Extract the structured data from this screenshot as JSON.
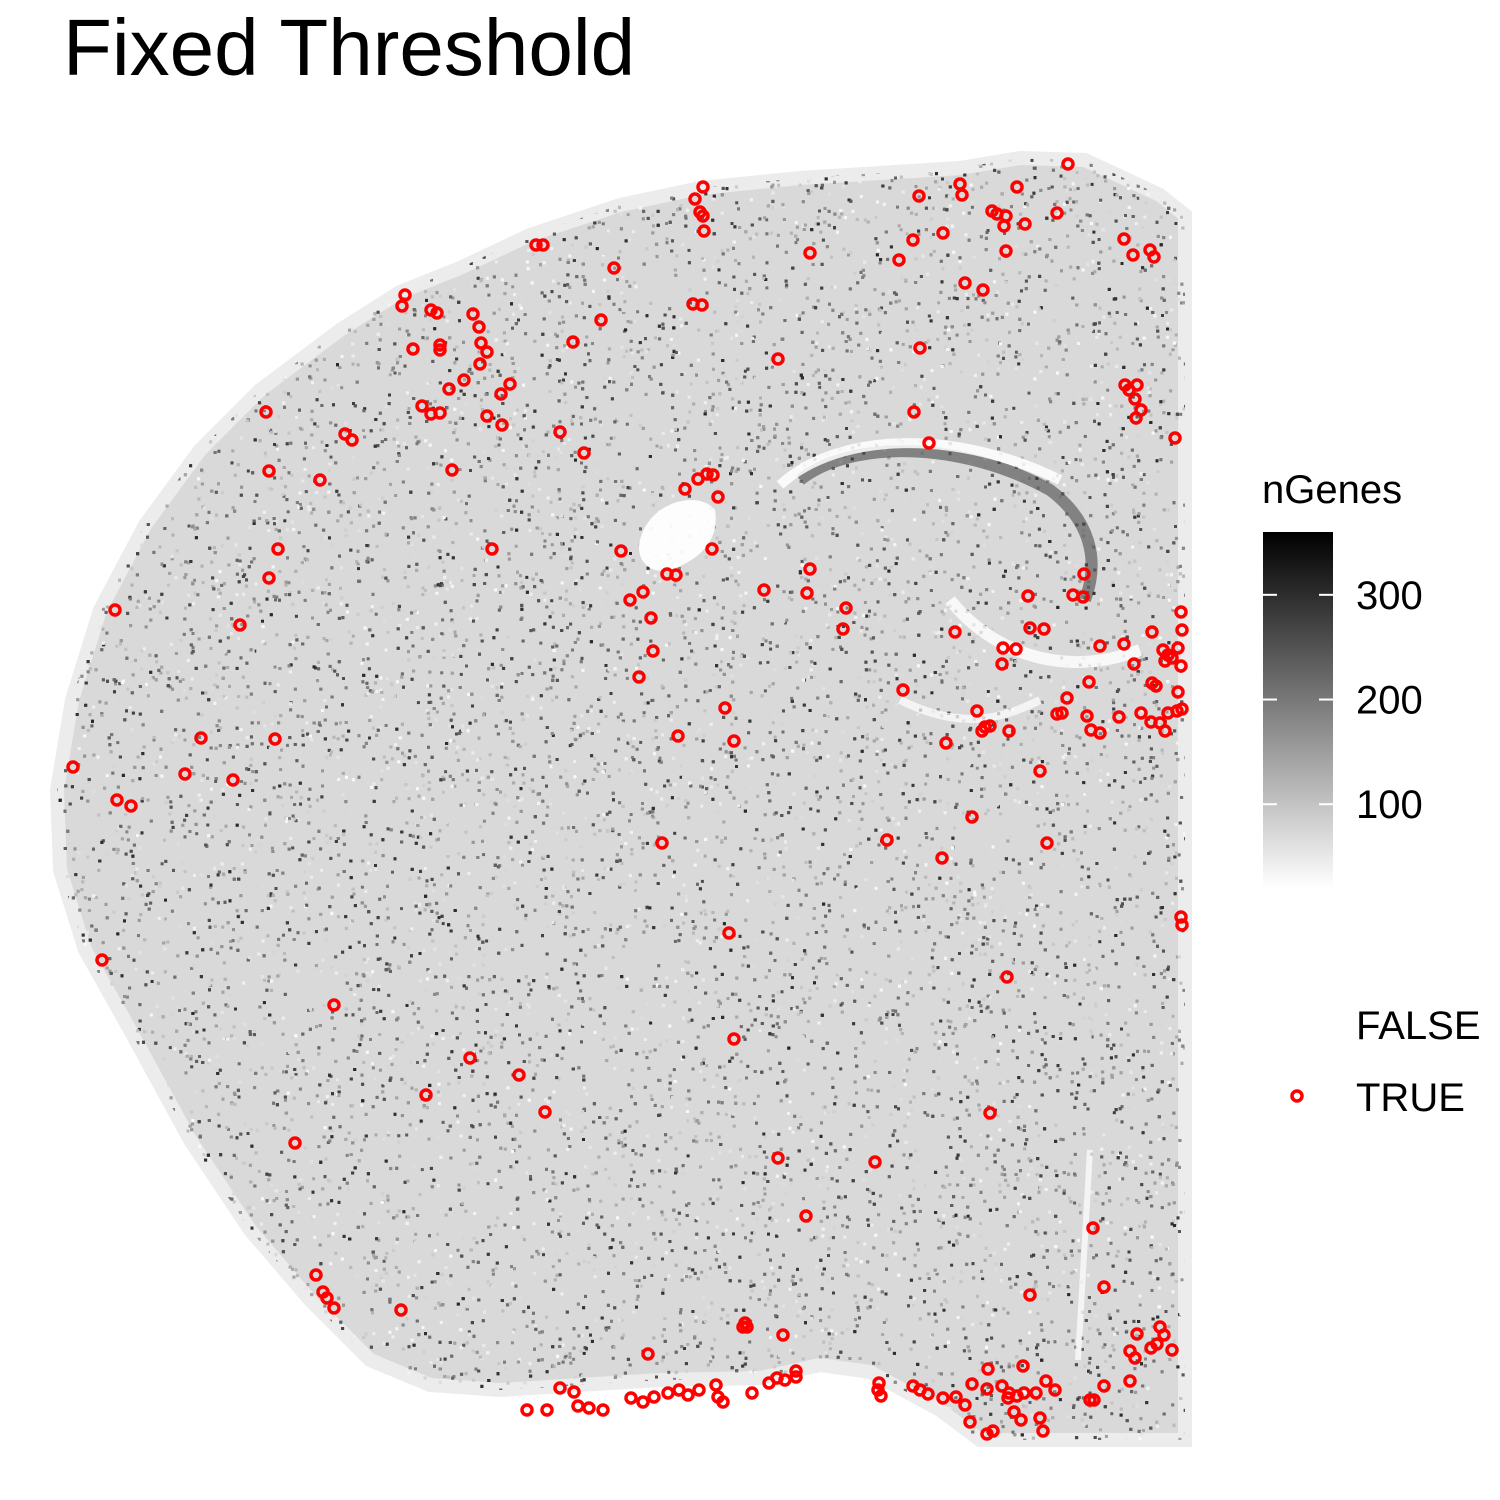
{
  "chart_data": {
    "type": "scatter",
    "title": "Fixed Threshold",
    "xlabel": "",
    "ylabel": "",
    "axes_visible": false,
    "grid": false,
    "background_points": {
      "description": "spatial tissue section, every cell drawn as a small grey dot shaded by gene count",
      "color_variable": "nGenes",
      "color_range": [
        20,
        360
      ],
      "gradient": [
        "#ffffff",
        "#000000"
      ]
    },
    "legend": {
      "placement": "right",
      "colorbar": {
        "title": "nGenes",
        "ticks": [
          100,
          200,
          300
        ],
        "tick_labels": [
          "100",
          "200",
          "300"
        ],
        "range": [
          20,
          360
        ]
      },
      "categories": [
        {
          "label": "FALSE",
          "color": "",
          "shape": "none"
        },
        {
          "label": "TRUE",
          "color": "#ff0000",
          "shape": "open-circle"
        }
      ]
    },
    "flagged_color": "#ff0000",
    "flagged_points": [
      [
        1068,
        164
      ],
      [
        703,
        187
      ],
      [
        695,
        199
      ],
      [
        700,
        212
      ],
      [
        703,
        216
      ],
      [
        704,
        231
      ],
      [
        919,
        196
      ],
      [
        960,
        184
      ],
      [
        962,
        195
      ],
      [
        1017,
        187
      ],
      [
        992,
        211
      ],
      [
        997,
        214
      ],
      [
        1006,
        216
      ],
      [
        1004,
        226
      ],
      [
        1025,
        224
      ],
      [
        1057,
        213
      ],
      [
        1006,
        251
      ],
      [
        943,
        233
      ],
      [
        913,
        240
      ],
      [
        899,
        260
      ],
      [
        1124,
        239
      ],
      [
        1133,
        255
      ],
      [
        1150,
        250
      ],
      [
        1154,
        257
      ],
      [
        536,
        245
      ],
      [
        543,
        245
      ],
      [
        810,
        253
      ],
      [
        614,
        268
      ],
      [
        965,
        283
      ],
      [
        983,
        290
      ],
      [
        405,
        295
      ],
      [
        402,
        306
      ],
      [
        431,
        310
      ],
      [
        437,
        313
      ],
      [
        693,
        304
      ],
      [
        702,
        305
      ],
      [
        601,
        320
      ],
      [
        473,
        314
      ],
      [
        479,
        327
      ],
      [
        481,
        343
      ],
      [
        487,
        352
      ],
      [
        573,
        342
      ],
      [
        413,
        349
      ],
      [
        440,
        345
      ],
      [
        440,
        350
      ],
      [
        778,
        359
      ],
      [
        920,
        348
      ],
      [
        480,
        364
      ],
      [
        510,
        384
      ],
      [
        501,
        394
      ],
      [
        464,
        380
      ],
      [
        449,
        389
      ],
      [
        422,
        406
      ],
      [
        431,
        414
      ],
      [
        440,
        413
      ],
      [
        487,
        416
      ],
      [
        502,
        425
      ],
      [
        1125,
        385
      ],
      [
        1129,
        390
      ],
      [
        1137,
        385
      ],
      [
        1135,
        399
      ],
      [
        1141,
        410
      ],
      [
        1136,
        418
      ],
      [
        914,
        412
      ],
      [
        266,
        412
      ],
      [
        345,
        434
      ],
      [
        352,
        440
      ],
      [
        560,
        432
      ],
      [
        584,
        453
      ],
      [
        929,
        443
      ],
      [
        1175,
        438
      ],
      [
        269,
        471
      ],
      [
        452,
        470
      ],
      [
        320,
        480
      ],
      [
        685,
        489
      ],
      [
        698,
        479
      ],
      [
        707,
        474
      ],
      [
        713,
        475
      ],
      [
        718,
        497
      ],
      [
        278,
        549
      ],
      [
        492,
        549
      ],
      [
        621,
        551
      ],
      [
        712,
        549
      ],
      [
        269,
        578
      ],
      [
        667,
        574
      ],
      [
        676,
        575
      ],
      [
        810,
        569
      ],
      [
        807,
        593
      ],
      [
        764,
        590
      ],
      [
        643,
        592
      ],
      [
        630,
        600
      ],
      [
        1084,
        574
      ],
      [
        1028,
        596
      ],
      [
        1073,
        595
      ],
      [
        1083,
        597
      ],
      [
        115,
        610
      ],
      [
        240,
        625
      ],
      [
        651,
        618
      ],
      [
        846,
        608
      ],
      [
        843,
        629
      ],
      [
        955,
        632
      ],
      [
        1030,
        628
      ],
      [
        1044,
        629
      ],
      [
        1181,
        612
      ],
      [
        1152,
        632
      ],
      [
        1182,
        630
      ],
      [
        1100,
        646
      ],
      [
        1124,
        644
      ],
      [
        1003,
        648
      ],
      [
        1016,
        649
      ],
      [
        653,
        651
      ],
      [
        1163,
        650
      ],
      [
        1168,
        655
      ],
      [
        1172,
        658
      ],
      [
        1165,
        661
      ],
      [
        1178,
        648
      ],
      [
        1134,
        664
      ],
      [
        1181,
        666
      ],
      [
        1002,
        664
      ],
      [
        639,
        677
      ],
      [
        1089,
        682
      ],
      [
        1152,
        683
      ],
      [
        1156,
        686
      ],
      [
        1178,
        692
      ],
      [
        903,
        690
      ],
      [
        725,
        708
      ],
      [
        977,
        711
      ],
      [
        1067,
        698
      ],
      [
        1062,
        713
      ],
      [
        1057,
        714
      ],
      [
        1087,
        716
      ],
      [
        1119,
        717
      ],
      [
        1141,
        713
      ],
      [
        1168,
        713
      ],
      [
        1177,
        711
      ],
      [
        1182,
        709
      ],
      [
        985,
        727
      ],
      [
        990,
        726
      ],
      [
        982,
        731
      ],
      [
        1009,
        731
      ],
      [
        1091,
        730
      ],
      [
        1100,
        733
      ],
      [
        1151,
        722
      ],
      [
        1160,
        723
      ],
      [
        1165,
        731
      ],
      [
        201,
        738
      ],
      [
        275,
        739
      ],
      [
        678,
        736
      ],
      [
        734,
        741
      ],
      [
        946,
        743
      ],
      [
        73,
        767
      ],
      [
        185,
        774
      ],
      [
        233,
        780
      ],
      [
        1040,
        771
      ],
      [
        117,
        800
      ],
      [
        131,
        806
      ],
      [
        972,
        817
      ],
      [
        887,
        840
      ],
      [
        662,
        843
      ],
      [
        1047,
        843
      ],
      [
        942,
        858
      ],
      [
        1181,
        917
      ],
      [
        1182,
        925
      ],
      [
        729,
        933
      ],
      [
        102,
        960
      ],
      [
        1007,
        977
      ],
      [
        334,
        1005
      ],
      [
        734,
        1039
      ],
      [
        470,
        1058
      ],
      [
        519,
        1075
      ],
      [
        426,
        1095
      ],
      [
        545,
        1112
      ],
      [
        990,
        1113
      ],
      [
        295,
        1143
      ],
      [
        778,
        1158
      ],
      [
        875,
        1162
      ],
      [
        806,
        1216
      ],
      [
        1093,
        1228
      ],
      [
        316,
        1275
      ],
      [
        1104,
        1287
      ],
      [
        323,
        1292
      ],
      [
        327,
        1298
      ],
      [
        334,
        1308
      ],
      [
        1030,
        1295
      ],
      [
        401,
        1310
      ],
      [
        745,
        1323
      ],
      [
        743,
        1327
      ],
      [
        747,
        1327
      ],
      [
        783,
        1335
      ],
      [
        1137,
        1334
      ],
      [
        1160,
        1327
      ],
      [
        1164,
        1335
      ],
      [
        1157,
        1344
      ],
      [
        1172,
        1350
      ],
      [
        1130,
        1351
      ],
      [
        1135,
        1358
      ],
      [
        1151,
        1348
      ],
      [
        648,
        1354
      ],
      [
        560,
        1388
      ],
      [
        574,
        1392
      ],
      [
        578,
        1406
      ],
      [
        589,
        1408
      ],
      [
        603,
        1410
      ],
      [
        527,
        1410
      ],
      [
        547,
        1410
      ],
      [
        631,
        1398
      ],
      [
        643,
        1402
      ],
      [
        654,
        1397
      ],
      [
        668,
        1393
      ],
      [
        679,
        1390
      ],
      [
        688,
        1395
      ],
      [
        699,
        1390
      ],
      [
        716,
        1385
      ],
      [
        718,
        1397
      ],
      [
        723,
        1402
      ],
      [
        752,
        1393
      ],
      [
        769,
        1383
      ],
      [
        777,
        1378
      ],
      [
        785,
        1380
      ],
      [
        796,
        1377
      ],
      [
        796,
        1371
      ],
      [
        879,
        1383
      ],
      [
        878,
        1390
      ],
      [
        881,
        1396
      ],
      [
        913,
        1386
      ],
      [
        920,
        1390
      ],
      [
        928,
        1394
      ],
      [
        943,
        1398
      ],
      [
        956,
        1397
      ],
      [
        965,
        1405
      ],
      [
        972,
        1384
      ],
      [
        987,
        1389
      ],
      [
        988,
        1369
      ],
      [
        1002,
        1386
      ],
      [
        1009,
        1393
      ],
      [
        1017,
        1396
      ],
      [
        1024,
        1393
      ],
      [
        1008,
        1398
      ],
      [
        1014,
        1412
      ],
      [
        1036,
        1393
      ],
      [
        1023,
        1366
      ],
      [
        1046,
        1381
      ],
      [
        1055,
        1390
      ],
      [
        1090,
        1400
      ],
      [
        1094,
        1400
      ],
      [
        1104,
        1386
      ],
      [
        1130,
        1381
      ],
      [
        970,
        1422
      ],
      [
        987,
        1434
      ],
      [
        993,
        1431
      ],
      [
        1040,
        1418
      ],
      [
        1043,
        1431
      ],
      [
        1021,
        1420
      ]
    ]
  }
}
